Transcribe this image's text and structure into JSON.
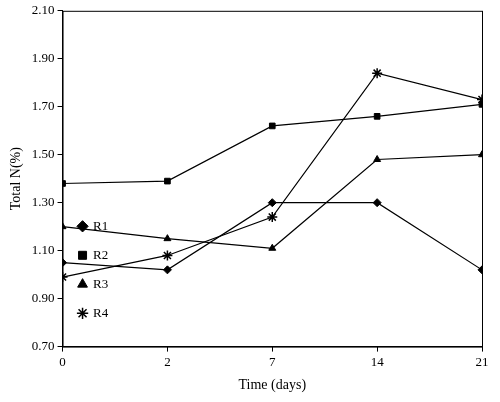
{
  "chart_data": {
    "type": "line",
    "x_label": "Time (days)",
    "y_label": "Total N(%)",
    "categories": [
      "0",
      "2",
      "7",
      "14",
      "21"
    ],
    "series": [
      {
        "name": "R1",
        "color": "#000000",
        "marker": "diamond",
        "values": [
          1.05,
          1.02,
          1.3,
          1.3,
          1.02
        ]
      },
      {
        "name": "R2",
        "color": "#000000",
        "marker": "square",
        "values": [
          1.38,
          1.39,
          1.62,
          1.66,
          1.71
        ]
      },
      {
        "name": "R3",
        "color": "#000000",
        "marker": "triangle",
        "values": [
          1.2,
          1.15,
          1.11,
          1.48,
          1.5
        ]
      },
      {
        "name": "R4",
        "color": "#000000",
        "marker": "asterisk",
        "values": [
          0.99,
          1.08,
          1.24,
          1.84,
          1.73
        ]
      }
    ],
    "ylim": [
      0.7,
      2.1
    ],
    "yticks": [
      {
        "value": 0.7,
        "label": "0.70"
      },
      {
        "value": 0.9,
        "label": "0.90"
      },
      {
        "value": 1.1,
        "label": "1.10"
      },
      {
        "value": 1.3,
        "label": "1.30"
      },
      {
        "value": 1.5,
        "label": "1.50"
      },
      {
        "value": 1.7,
        "label": "1.70"
      },
      {
        "value": 1.9,
        "label": "1.90"
      },
      {
        "value": 2.1,
        "label": "2.10"
      }
    ],
    "grid": false,
    "legend": "upper right"
  }
}
